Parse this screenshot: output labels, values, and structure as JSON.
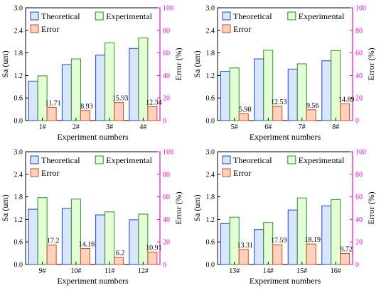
{
  "colors": {
    "theoretical_fill": "#d9e6ff",
    "theoretical_stroke": "#1f3fd8",
    "experimental_fill": "#e4ffd4",
    "experimental_stroke": "#2f8f2f",
    "error_fill": "#ffd2c0",
    "error_stroke": "#d24a1e",
    "right_axis": "#e010d0"
  },
  "chart_data": [
    {
      "type": "bar",
      "categories": [
        "1#",
        "2#",
        "3#",
        "4#"
      ],
      "xlabel": "Experiment numbers",
      "ylabel": "Sa (um)",
      "ylabel_right": "Error (%)",
      "ylim": [
        0,
        3.0
      ],
      "yticks": [
        "0.0",
        "0.6",
        "1.2",
        "1.8",
        "2.4",
        "3.0"
      ],
      "ylim_right": [
        0,
        100
      ],
      "yticks_right": [
        "0",
        "20",
        "40",
        "60",
        "80",
        "100"
      ],
      "legend": [
        "Theoretical",
        "Experimental",
        "Error"
      ],
      "series": [
        {
          "name": "Theoretical",
          "axis": "left",
          "values": [
            1.05,
            1.49,
            1.74,
            1.92
          ]
        },
        {
          "name": "Experimental",
          "axis": "left",
          "values": [
            1.19,
            1.64,
            2.07,
            2.2
          ]
        },
        {
          "name": "Error",
          "axis": "right",
          "values": [
            11.71,
            8.93,
            15.93,
            12.34
          ],
          "labels": [
            "11.71",
            "8.93",
            "15.93",
            "12.34"
          ]
        }
      ]
    },
    {
      "type": "bar",
      "categories": [
        "5#",
        "6#",
        "7#",
        "8#"
      ],
      "xlabel": "Experiment numbers",
      "ylabel": "Sa (um)",
      "ylabel_right": "Error (%)",
      "ylim": [
        0,
        3.0
      ],
      "yticks": [
        "0.0",
        "0.6",
        "1.2",
        "1.8",
        "2.4",
        "3.0"
      ],
      "ylim_right": [
        0,
        100
      ],
      "yticks_right": [
        "0",
        "20",
        "40",
        "60",
        "80",
        "100"
      ],
      "legend": [
        "Theoretical",
        "Experimental",
        "Error"
      ],
      "series": [
        {
          "name": "Theoretical",
          "axis": "left",
          "values": [
            1.31,
            1.64,
            1.37,
            1.59
          ]
        },
        {
          "name": "Experimental",
          "axis": "left",
          "values": [
            1.4,
            1.87,
            1.51,
            1.86
          ]
        },
        {
          "name": "Error",
          "axis": "right",
          "values": [
            5.98,
            12.53,
            9.56,
            14.89
          ],
          "labels": [
            "5.98",
            "12.53",
            "9.56",
            "14.89"
          ]
        }
      ]
    },
    {
      "type": "bar",
      "categories": [
        "9#",
        "10#",
        "11#",
        "12#"
      ],
      "xlabel": "Experiment numbers",
      "ylabel": "Sa (um)",
      "ylabel_right": "Error (%)",
      "ylim": [
        0,
        3.0
      ],
      "yticks": [
        "0.0",
        "0.6",
        "1.2",
        "1.8",
        "2.4",
        "3.0"
      ],
      "ylim_right": [
        0,
        100
      ],
      "yticks_right": [
        "0",
        "20",
        "40",
        "60",
        "80",
        "100"
      ],
      "legend": [
        "Theoretical",
        "Experimental",
        "Error"
      ],
      "series": [
        {
          "name": "Theoretical",
          "axis": "left",
          "values": [
            1.47,
            1.49,
            1.32,
            1.19
          ]
        },
        {
          "name": "Experimental",
          "axis": "left",
          "values": [
            1.78,
            1.74,
            1.4,
            1.34
          ]
        },
        {
          "name": "Error",
          "axis": "right",
          "values": [
            17.2,
            14.16,
            6.2,
            10.91
          ],
          "labels": [
            "17.2",
            "14.16",
            "6.2",
            "10.91"
          ]
        }
      ]
    },
    {
      "type": "bar",
      "categories": [
        "13#",
        "14#",
        "15#",
        "16#"
      ],
      "xlabel": "Experiment numbers",
      "ylabel": "Sa (um)",
      "ylabel_right": "Error (%)",
      "ylim": [
        0,
        3.0
      ],
      "yticks": [
        "0.0",
        "0.6",
        "1.2",
        "1.8",
        "2.4",
        "3.0"
      ],
      "ylim_right": [
        0,
        100
      ],
      "yticks_right": [
        "0",
        "20",
        "40",
        "60",
        "80",
        "100"
      ],
      "legend": [
        "Theoretical",
        "Experimental",
        "Error"
      ],
      "series": [
        {
          "name": "Theoretical",
          "axis": "left",
          "values": [
            1.09,
            0.93,
            1.45,
            1.56
          ]
        },
        {
          "name": "Experimental",
          "axis": "left",
          "values": [
            1.26,
            1.12,
            1.77,
            1.73
          ]
        },
        {
          "name": "Error",
          "axis": "right",
          "values": [
            13.31,
            17.59,
            18.19,
            9.72
          ],
          "labels": [
            "13.31",
            "17.59",
            "18.19",
            "9.72"
          ]
        }
      ]
    }
  ]
}
